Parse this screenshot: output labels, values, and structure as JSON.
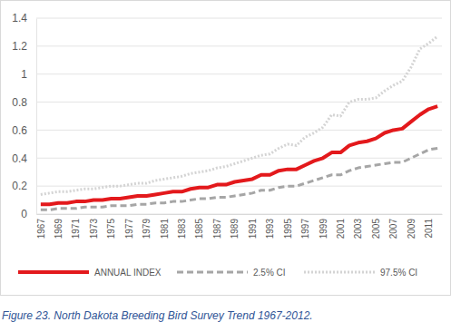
{
  "chart_data": {
    "type": "line",
    "title": "Figure 23. North Dakota Breeding Bird Survey Trend 1967-2012.",
    "x": [
      1967,
      1968,
      1969,
      1970,
      1971,
      1972,
      1973,
      1974,
      1975,
      1976,
      1977,
      1978,
      1979,
      1980,
      1981,
      1982,
      1983,
      1984,
      1985,
      1986,
      1987,
      1988,
      1989,
      1990,
      1991,
      1992,
      1993,
      1994,
      1995,
      1996,
      1997,
      1998,
      1999,
      2000,
      2001,
      2002,
      2003,
      2004,
      2005,
      2006,
      2007,
      2008,
      2009,
      2010,
      2011,
      2012
    ],
    "xlim": [
      1966.5,
      2012.5
    ],
    "xticks": [
      1967,
      1969,
      1971,
      1973,
      1975,
      1977,
      1979,
      1981,
      1983,
      1985,
      1987,
      1989,
      1991,
      1993,
      1995,
      1997,
      1999,
      2001,
      2003,
      2005,
      2007,
      2009,
      2011
    ],
    "ylim": [
      0,
      1.4
    ],
    "yticks": [
      0,
      0.2,
      0.4,
      0.6,
      0.8,
      1,
      1.2,
      1.4
    ],
    "grid": true,
    "legend": "bottom",
    "series": [
      {
        "name": "ANNUAL INDEX",
        "color": "#e3191c",
        "line_style": "solid",
        "values": [
          0.07,
          0.07,
          0.08,
          0.08,
          0.09,
          0.09,
          0.1,
          0.1,
          0.11,
          0.11,
          0.12,
          0.13,
          0.13,
          0.14,
          0.15,
          0.16,
          0.16,
          0.18,
          0.19,
          0.19,
          0.21,
          0.21,
          0.23,
          0.24,
          0.25,
          0.28,
          0.28,
          0.31,
          0.32,
          0.32,
          0.35,
          0.38,
          0.4,
          0.44,
          0.44,
          0.49,
          0.51,
          0.52,
          0.54,
          0.58,
          0.6,
          0.61,
          0.66,
          0.71,
          0.75,
          0.77
        ]
      },
      {
        "name": "2.5% CI",
        "color": "#a6a6a6",
        "line_style": "dashed",
        "values": [
          0.03,
          0.03,
          0.04,
          0.04,
          0.04,
          0.05,
          0.05,
          0.05,
          0.06,
          0.06,
          0.06,
          0.07,
          0.07,
          0.08,
          0.08,
          0.09,
          0.09,
          0.1,
          0.11,
          0.11,
          0.12,
          0.12,
          0.13,
          0.14,
          0.15,
          0.17,
          0.17,
          0.19,
          0.2,
          0.2,
          0.22,
          0.24,
          0.26,
          0.28,
          0.28,
          0.31,
          0.33,
          0.34,
          0.35,
          0.36,
          0.37,
          0.37,
          0.4,
          0.43,
          0.46,
          0.47
        ]
      },
      {
        "name": "97.5% CI",
        "color": "#d4d4d4",
        "line_style": "dotted",
        "values": [
          0.14,
          0.15,
          0.16,
          0.16,
          0.17,
          0.18,
          0.18,
          0.19,
          0.2,
          0.2,
          0.21,
          0.22,
          0.22,
          0.24,
          0.25,
          0.26,
          0.27,
          0.29,
          0.3,
          0.31,
          0.33,
          0.34,
          0.36,
          0.38,
          0.4,
          0.42,
          0.43,
          0.47,
          0.5,
          0.49,
          0.55,
          0.58,
          0.62,
          0.71,
          0.7,
          0.8,
          0.82,
          0.82,
          0.83,
          0.88,
          0.92,
          0.95,
          1.05,
          1.18,
          1.22,
          1.27
        ]
      }
    ]
  }
}
